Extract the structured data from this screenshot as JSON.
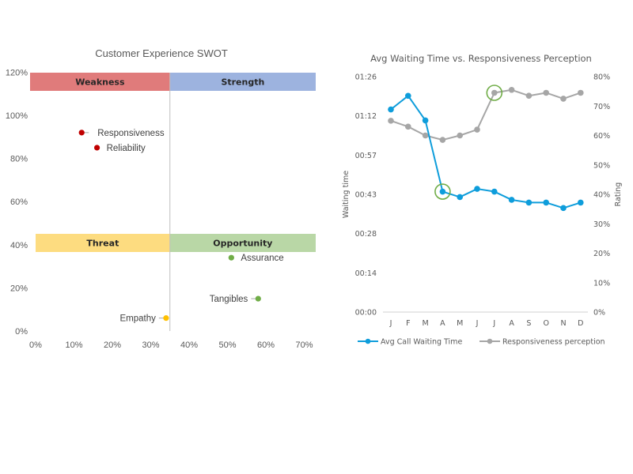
{
  "chart_data": [
    {
      "type": "scatter",
      "title": "Customer Experience SWOT",
      "xlabel": "",
      "ylabel": "",
      "xlim": [
        0,
        0.73
      ],
      "ylim": [
        0,
        1.2
      ],
      "x_ticks": [
        "0%",
        "10%",
        "20%",
        "30%",
        "40%",
        "50%",
        "60%",
        "70%"
      ],
      "x_tick_values": [
        0,
        0.1,
        0.2,
        0.3,
        0.4,
        0.5,
        0.6,
        0.7
      ],
      "y_ticks": [
        "0%",
        "20%",
        "40%",
        "60%",
        "80%",
        "100%",
        "120%"
      ],
      "y_tick_values": [
        0,
        0.2,
        0.4,
        0.6,
        0.8,
        1.0,
        1.2
      ],
      "divider_x": 0.35,
      "grid": false,
      "quadrant_bands": [
        {
          "label": "Weakness",
          "x_from": -0.015,
          "x_to": 0.35,
          "y_from": 1.12,
          "y_to": 1.2,
          "color": "#e07b7b"
        },
        {
          "label": "Strength",
          "x_from": 0.35,
          "x_to": 0.73,
          "y_from": 1.12,
          "y_to": 1.2,
          "color": "#9db3df"
        },
        {
          "label": "Threat",
          "x_from": 0.0,
          "x_to": 0.35,
          "y_from": 0.37,
          "y_to": 0.455,
          "color": "#fddc80"
        },
        {
          "label": "Opportunity",
          "x_from": 0.35,
          "x_to": 0.73,
          "y_from": 0.37,
          "y_to": 0.455,
          "color": "#b9d7a6"
        }
      ],
      "points": [
        {
          "name": "Responsiveness",
          "x": 0.12,
          "y": 0.92,
          "color": "#c00000",
          "label_side": "right",
          "leader": true
        },
        {
          "name": "Reliability",
          "x": 0.16,
          "y": 0.85,
          "color": "#c00000",
          "label_side": "right",
          "leader": false
        },
        {
          "name": "Assurance",
          "x": 0.51,
          "y": 0.34,
          "color": "#70ad47",
          "label_side": "right",
          "leader": false
        },
        {
          "name": "Tangibles",
          "x": 0.58,
          "y": 0.15,
          "color": "#70ad47",
          "label_side": "left",
          "leader": true
        },
        {
          "name": "Empathy",
          "x": 0.34,
          "y": 0.06,
          "color": "#ffc000",
          "label_side": "left",
          "leader": true
        }
      ]
    },
    {
      "type": "line",
      "title": "Avg Waiting Time vs. Responsiveness Perception",
      "categories": [
        "J",
        "F",
        "M",
        "A",
        "M",
        "J",
        "J",
        "A",
        "S",
        "O",
        "N",
        "D"
      ],
      "ylabel": "Waiting time",
      "y2label": "Rating",
      "ylim_seconds": [
        0,
        86
      ],
      "y_ticks": [
        "00:00",
        "00:14",
        "00:28",
        "00:43",
        "00:57",
        "01:12",
        "01:26"
      ],
      "y_tick_values_seconds": [
        0,
        14.33,
        28.67,
        43,
        57.33,
        71.67,
        86
      ],
      "y2lim": [
        0,
        0.8
      ],
      "y2_ticks": [
        "0%",
        "10%",
        "20%",
        "30%",
        "40%",
        "50%",
        "60%",
        "70%",
        "80%"
      ],
      "y2_tick_values": [
        0,
        0.1,
        0.2,
        0.3,
        0.4,
        0.5,
        0.6,
        0.7,
        0.8
      ],
      "grid": false,
      "legend_position": "bottom",
      "series": [
        {
          "name": "Avg Call Waiting Time",
          "axis": "left",
          "unit": "seconds",
          "color": "#0e9ddb",
          "values": [
            74,
            79,
            70,
            44,
            42,
            45,
            44,
            41,
            40,
            40,
            38,
            40
          ]
        },
        {
          "name": "Responsiveness perception",
          "axis": "right",
          "unit": "fraction",
          "color": "#a6a6a6",
          "values": [
            0.65,
            0.63,
            0.6,
            0.585,
            0.6,
            0.62,
            0.745,
            0.755,
            0.735,
            0.745,
            0.725,
            0.745
          ]
        }
      ],
      "annotations": [
        {
          "type": "circle",
          "series": "Avg Call Waiting Time",
          "index": 3,
          "color": "#70ad47"
        },
        {
          "type": "circle",
          "series": "Responsiveness perception",
          "index": 6,
          "color": "#70ad47"
        }
      ]
    }
  ]
}
